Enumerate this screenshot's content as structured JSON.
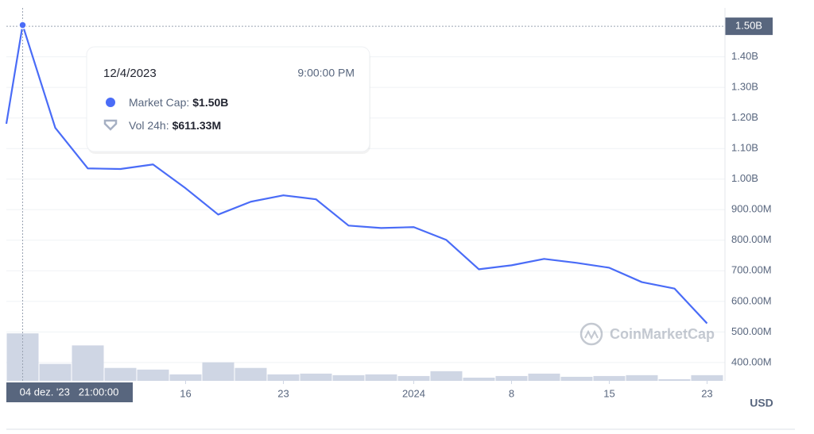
{
  "chart_data": {
    "type": "line",
    "x": [
      -0.5,
      0,
      1,
      2,
      3,
      4,
      5,
      6,
      7,
      8,
      9,
      10,
      11,
      12,
      13,
      14,
      15,
      16,
      17,
      18,
      19,
      20,
      21
    ],
    "xlim": [
      -0.5,
      21.55
    ],
    "xticks": [
      {
        "value": 5,
        "label": "16"
      },
      {
        "value": 8,
        "label": "23"
      },
      {
        "value": 12,
        "label": "2024"
      },
      {
        "value": 15,
        "label": "8"
      },
      {
        "value": 18,
        "label": "15"
      },
      {
        "value": 21,
        "label": "23"
      }
    ],
    "ylim": [
      340000000,
      1560000000
    ],
    "yticks": [
      {
        "value": 400000000,
        "label": "400.00M"
      },
      {
        "value": 500000000,
        "label": "500.00M"
      },
      {
        "value": 600000000,
        "label": "600.00M"
      },
      {
        "value": 700000000,
        "label": "700.00M"
      },
      {
        "value": 800000000,
        "label": "800.00M"
      },
      {
        "value": 900000000,
        "label": "900.00M"
      },
      {
        "value": 1000000000,
        "label": "1.00B"
      },
      {
        "value": 1100000000,
        "label": "1.10B"
      },
      {
        "value": 1200000000,
        "label": "1.20B"
      },
      {
        "value": 1300000000,
        "label": "1.30B"
      },
      {
        "value": 1400000000,
        "label": "1.40B"
      }
    ],
    "y2lim": [
      0,
      4800000000
    ],
    "grid": true,
    "axis_unit": "USD",
    "watermark": "CoinMarketCap",
    "series": [
      {
        "name": "Market Cap",
        "color": "#4a6cf7",
        "values": [
          1181000000,
          1504000000,
          1168000000,
          1035000000,
          1033000000,
          1048000000,
          970000000,
          884000000,
          926000000,
          947000000,
          934000000,
          848000000,
          840000000,
          843000000,
          801000000,
          705000000,
          718000000,
          739000000,
          726000000,
          710000000,
          663000000,
          642000000,
          528000000
        ]
      },
      {
        "name": "Vol 24h",
        "color": "#cfd6e4",
        "type": "bar",
        "axis": "y2",
        "x": [
          0,
          1,
          2,
          3,
          4,
          5,
          6,
          7,
          8,
          9,
          10,
          11,
          12,
          13,
          14,
          15,
          16,
          17,
          18,
          19,
          20,
          21
        ],
        "values": [
          611000000,
          218000000,
          456000000,
          166000000,
          145000000,
          83000000,
          238000000,
          166000000,
          83000000,
          93000000,
          73000000,
          83000000,
          62000000,
          124000000,
          41000000,
          62000000,
          93000000,
          52000000,
          62000000,
          73000000,
          21000000,
          73000000
        ]
      }
    ],
    "crosshair": {
      "x_label": "04 dez. '23   21:00:00",
      "y_label": "1.50B",
      "y_value": 1500000000,
      "x_value": 0
    },
    "tooltip": {
      "date": "12/4/2023",
      "time": "9:00:00 PM",
      "rows": [
        {
          "label": "Market Cap:",
          "value": "$1.50B"
        },
        {
          "label": "Vol 24h:",
          "value": "$611.33M"
        }
      ]
    }
  }
}
